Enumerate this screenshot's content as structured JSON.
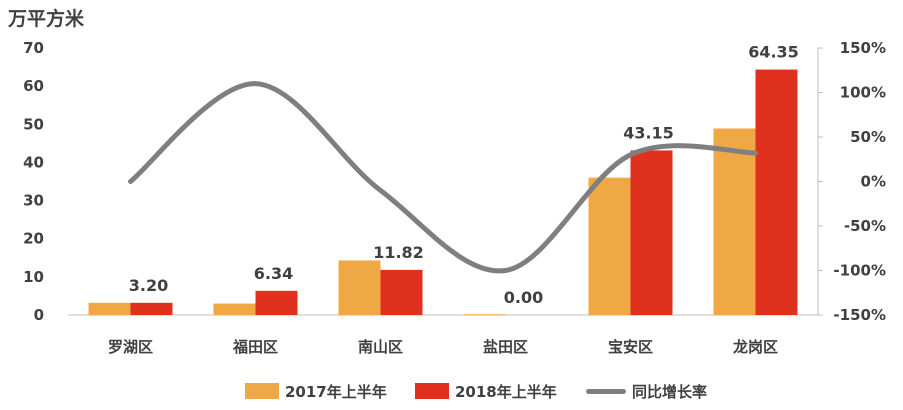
{
  "unit_label": "万平方米",
  "chart_data": {
    "type": "bar",
    "categories": [
      "罗湖区",
      "福田区",
      "南山区",
      "盐田区",
      "宝安区",
      "龙岗区"
    ],
    "series": [
      {
        "name": "2017年上半年",
        "type": "bar",
        "axis": "left",
        "color": "#F0A844",
        "values": [
          3.2,
          3.0,
          14.3,
          0.2,
          36.0,
          48.9
        ]
      },
      {
        "name": "2018年上半年",
        "type": "bar",
        "axis": "right_of_pair",
        "color": "#E0301E",
        "values": [
          3.2,
          6.34,
          11.82,
          0.0,
          43.15,
          64.35
        ],
        "labels": [
          "3.20",
          "6.34",
          "11.82",
          "0.00",
          "43.15",
          "64.35"
        ]
      },
      {
        "name": "同比增长率",
        "type": "line",
        "axis": "right",
        "color": "#7F7F7F",
        "values": [
          0,
          110,
          -10,
          -100,
          30,
          32
        ]
      }
    ],
    "y_left": {
      "min": 0,
      "max": 70,
      "step": 10,
      "ticks": [
        "0",
        "10",
        "20",
        "30",
        "40",
        "50",
        "60",
        "70"
      ]
    },
    "y_right": {
      "min": -150,
      "max": 150,
      "step": 50,
      "ticks": [
        "-150%",
        "-100%",
        "-50%",
        "0%",
        "50%",
        "100%",
        "150%"
      ]
    },
    "grid": false,
    "legend_position": "bottom"
  }
}
